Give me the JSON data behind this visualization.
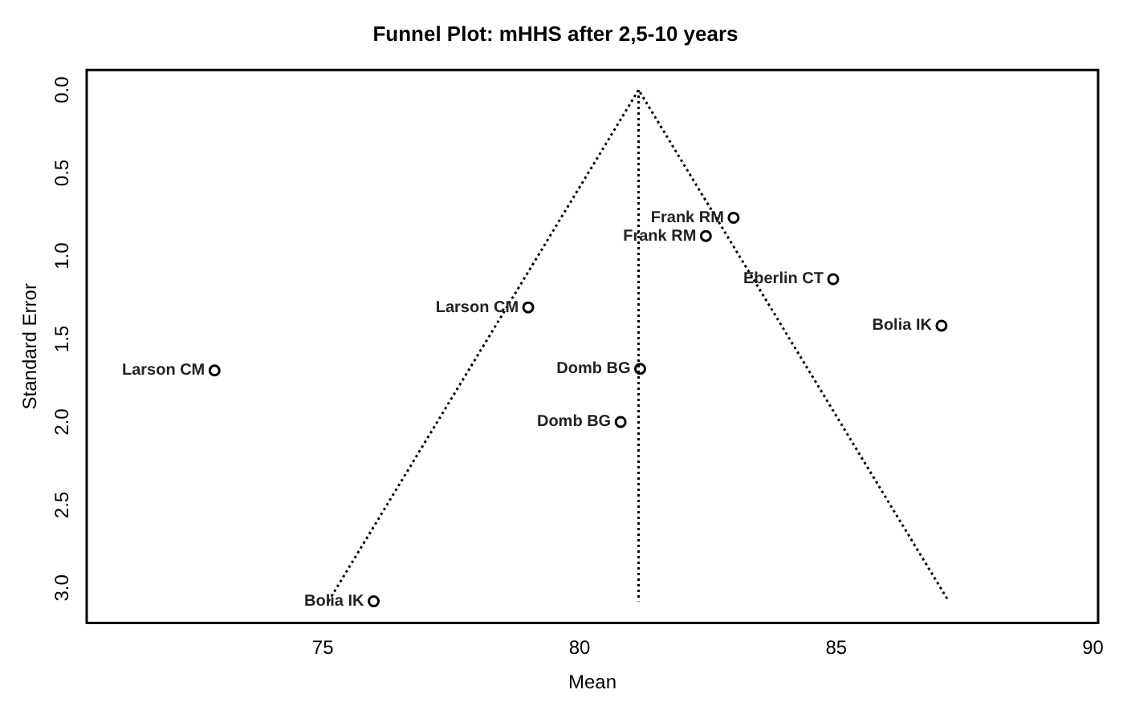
{
  "chart_data": {
    "type": "scatter",
    "title": "Funnel Plot: mHHS after 2,5-10 years",
    "xlabel": "Mean",
    "ylabel": "Standard Error",
    "xlim": [
      70.4,
      90.1
    ],
    "xticks": [
      75,
      80,
      85,
      90
    ],
    "ylim": [
      3.21,
      -0.12
    ],
    "yticks": [
      {
        "value": 0,
        "label": "0.0"
      },
      {
        "value": 0.5,
        "label": "0.5"
      },
      {
        "value": 1,
        "label": "1.0"
      },
      {
        "value": 1.5,
        "label": "1.5"
      },
      {
        "value": 2,
        "label": "2.0"
      },
      {
        "value": 2.5,
        "label": "2.5"
      },
      {
        "value": 3,
        "label": "3.0"
      }
    ],
    "grid": false,
    "legend": false,
    "series": [
      {
        "type": "scatter",
        "color": "#000000",
        "marker": "circle",
        "x": [
          72.89,
          79.0,
          75.99,
          83.0,
          82.46,
          84.94,
          87.05,
          81.18,
          80.8
        ],
        "values": [
          1.69,
          1.31,
          3.08,
          0.77,
          0.88,
          1.14,
          1.42,
          1.68,
          2.0
        ],
        "value_labels": [
          "Larson CM",
          "Larson CM",
          "Bolia IK",
          "Frank RM",
          "Frank RM",
          "Eberlin CT",
          "Bolia IK",
          "Domb BG",
          "Domb BG"
        ]
      },
      {
        "type": "line",
        "color": "#000000",
        "marker": "none",
        "line_style": "dotted",
        "x": [
          75.11,
          81.15,
          87.19
        ],
        "values": [
          3.08,
          0,
          3.08
        ]
      },
      {
        "type": "line",
        "color": "#000000",
        "marker": "none",
        "line_style": "dotted",
        "x": [
          81.15,
          81.15
        ],
        "values": [
          0,
          3.08
        ]
      }
    ]
  }
}
